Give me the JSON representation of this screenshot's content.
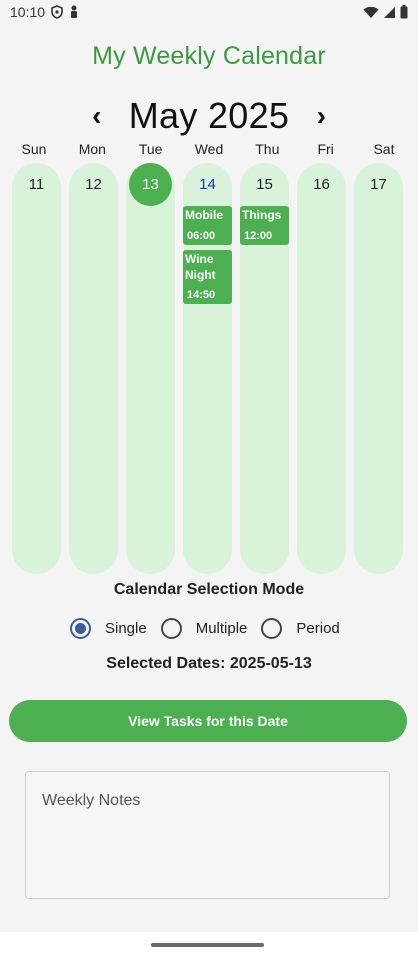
{
  "status_bar": {
    "time": "10:10",
    "icons": [
      "shield-icon",
      "person-icon",
      "wifi-icon",
      "signal-icon",
      "battery-icon"
    ]
  },
  "app": {
    "title": "My Weekly Calendar",
    "accent_color": "#4caf50",
    "title_color": "#3a9a3f"
  },
  "calendar": {
    "month_label": "May 2025",
    "prev_icon": "chevron-left-icon",
    "next_icon": "chevron-right-icon",
    "day_names": [
      "Sun",
      "Mon",
      "Tue",
      "Wed",
      "Thu",
      "Fri",
      "Sat"
    ],
    "dates": [
      "11",
      "12",
      "13",
      "14",
      "15",
      "16",
      "17"
    ],
    "selected_date": "13",
    "today_date": "14",
    "events": [
      {
        "day": "Wed",
        "title": "Mobile",
        "time": "06:00"
      },
      {
        "day": "Wed",
        "title": "Wine Night",
        "time": "14:50"
      },
      {
        "day": "Thu",
        "title": "Things",
        "time": "12:00"
      }
    ]
  },
  "selection_mode": {
    "title": "Calendar Selection Mode",
    "options": [
      "Single",
      "Multiple",
      "Period"
    ],
    "selected": "Single"
  },
  "selected_dates_text": "Selected Dates: 2025-05-13",
  "view_button_label": "View Tasks for this Date",
  "notes": {
    "placeholder": "Weekly Notes"
  }
}
